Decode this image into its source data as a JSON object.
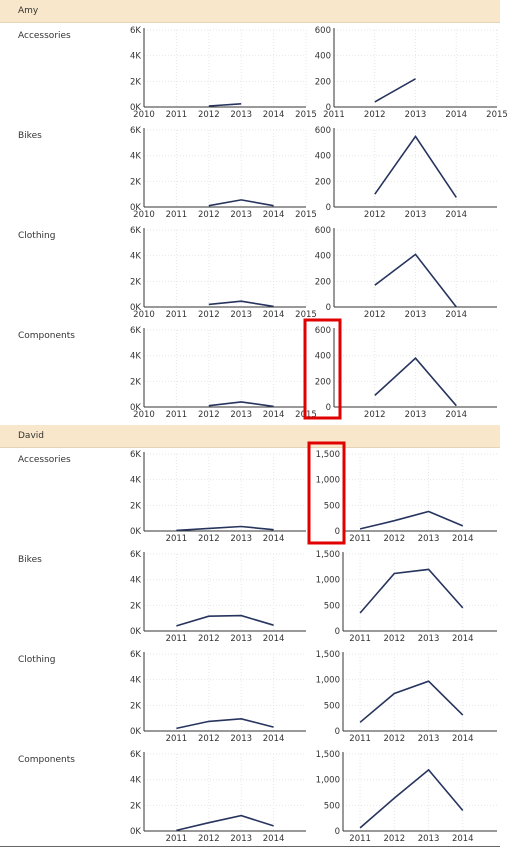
{
  "groups": [
    {
      "name": "Amy",
      "categories": [
        "Accessories",
        "Bikes",
        "Clothing",
        "Components"
      ]
    },
    {
      "name": "David",
      "categories": [
        "Accessories",
        "Bikes",
        "Clothing",
        "Components"
      ]
    }
  ],
  "colors": {
    "series": "#27345e",
    "header_bg": "#f8e7cb",
    "highlight": "#e00000"
  },
  "chart_data": [
    {
      "id": "amy-accessories-left",
      "type": "line",
      "x": [
        2010,
        2011,
        2012,
        2013,
        2014,
        2015
      ],
      "y": [
        null,
        null,
        80,
        250,
        null,
        null
      ],
      "xlim": [
        2010,
        2015
      ],
      "ylim": [
        0,
        6000
      ],
      "yticks": [
        0,
        2000,
        4000,
        6000
      ],
      "ytick_labels": [
        "0K",
        "2K",
        "4K",
        "6K"
      ],
      "xtick_labels": [
        "2010",
        "2011",
        "2012",
        "2013",
        "2014",
        "2015"
      ]
    },
    {
      "id": "amy-accessories-right",
      "type": "line",
      "x": [
        2011,
        2012,
        2013,
        2014,
        2015
      ],
      "y": [
        null,
        40,
        220,
        null,
        null
      ],
      "xlim": [
        2011,
        2015
      ],
      "ylim": [
        0,
        600
      ],
      "yticks": [
        0,
        200,
        400,
        600
      ],
      "ytick_labels": [
        "0",
        "200",
        "400",
        "600"
      ],
      "xtick_labels": [
        "2011",
        "2012",
        "2013",
        "2014",
        "2015"
      ]
    },
    {
      "id": "amy-bikes-left",
      "type": "line",
      "x": [
        2010,
        2011,
        2012,
        2013,
        2014,
        2015
      ],
      "y": [
        null,
        null,
        100,
        550,
        100,
        null
      ],
      "xlim": [
        2010,
        2015
      ],
      "ylim": [
        0,
        6000
      ],
      "yticks": [
        0,
        2000,
        4000,
        6000
      ],
      "ytick_labels": [
        "0K",
        "2K",
        "4K",
        "6K"
      ],
      "xtick_labels": [
        "2010",
        "2011",
        "2012",
        "2013",
        "2014",
        "2015"
      ]
    },
    {
      "id": "amy-bikes-right",
      "type": "line",
      "x": [
        2012,
        2013,
        2014
      ],
      "y": [
        100,
        550,
        75
      ],
      "xlim": [
        2011,
        2015
      ],
      "ylim": [
        0,
        600
      ],
      "yticks": [
        0,
        200,
        400,
        600
      ],
      "ytick_labels": [
        "0",
        "200",
        "400",
        "600"
      ],
      "xtick_labels": [
        "2012",
        "2013",
        "2014"
      ]
    },
    {
      "id": "amy-clothing-left",
      "type": "line",
      "x": [
        2010,
        2011,
        2012,
        2013,
        2014,
        2015
      ],
      "y": [
        null,
        null,
        200,
        450,
        50,
        null
      ],
      "xlim": [
        2010,
        2015
      ],
      "ylim": [
        0,
        6000
      ],
      "yticks": [
        0,
        2000,
        4000,
        6000
      ],
      "ytick_labels": [
        "0K",
        "2K",
        "4K",
        "6K"
      ],
      "xtick_labels": [
        "2010",
        "2011",
        "2012",
        "2013",
        "2014",
        "2015"
      ]
    },
    {
      "id": "amy-clothing-right",
      "type": "line",
      "x": [
        2012,
        2013,
        2014
      ],
      "y": [
        170,
        410,
        0
      ],
      "xlim": [
        2011,
        2015
      ],
      "ylim": [
        0,
        600
      ],
      "yticks": [
        0,
        200,
        400,
        600
      ],
      "ytick_labels": [
        "0",
        "200",
        "400",
        "600"
      ],
      "xtick_labels": [
        "2012",
        "2013",
        "2014"
      ]
    },
    {
      "id": "amy-components-left",
      "type": "line",
      "x": [
        2010,
        2011,
        2012,
        2013,
        2014,
        2015
      ],
      "y": [
        null,
        null,
        100,
        400,
        50,
        null
      ],
      "xlim": [
        2010,
        2015
      ],
      "ylim": [
        0,
        6000
      ],
      "yticks": [
        0,
        2000,
        4000,
        6000
      ],
      "ytick_labels": [
        "0K",
        "2K",
        "4K",
        "6K"
      ],
      "xtick_labels": [
        "2010",
        "2011",
        "2012",
        "2013",
        "2014",
        "2015"
      ]
    },
    {
      "id": "amy-components-right",
      "type": "line",
      "x": [
        2012,
        2013,
        2014
      ],
      "y": [
        90,
        380,
        10
      ],
      "xlim": [
        2011,
        2015
      ],
      "ylim": [
        0,
        600
      ],
      "yticks": [
        0,
        200,
        400,
        600
      ],
      "ytick_labels": [
        "0",
        "200",
        "400",
        "600"
      ],
      "xtick_labels": [
        "2012",
        "2013",
        "2014"
      ]
    },
    {
      "id": "david-accessories-left",
      "type": "line",
      "x": [
        2011,
        2012,
        2013,
        2014
      ],
      "y": [
        50,
        200,
        350,
        100
      ],
      "xlim": [
        2010,
        2015
      ],
      "ylim": [
        0,
        6000
      ],
      "yticks": [
        0,
        2000,
        4000,
        6000
      ],
      "ytick_labels": [
        "0K",
        "2K",
        "4K",
        "6K"
      ],
      "xtick_labels": [
        "2011",
        "2012",
        "2013",
        "2014"
      ]
    },
    {
      "id": "david-accessories-right",
      "type": "line",
      "x": [
        2011,
        2012,
        2013,
        2014
      ],
      "y": [
        40,
        200,
        380,
        100
      ],
      "xlim": [
        2010.5,
        2015
      ],
      "ylim": [
        0,
        1500
      ],
      "yticks": [
        0,
        500,
        1000,
        1500
      ],
      "ytick_labels": [
        "0",
        "500",
        "1,000",
        "1,500"
      ],
      "xtick_labels": [
        "2011",
        "2012",
        "2013",
        "2014"
      ]
    },
    {
      "id": "david-bikes-left",
      "type": "line",
      "x": [
        2011,
        2012,
        2013,
        2014
      ],
      "y": [
        400,
        1150,
        1200,
        450
      ],
      "xlim": [
        2010,
        2015
      ],
      "ylim": [
        0,
        6000
      ],
      "yticks": [
        0,
        2000,
        4000,
        6000
      ],
      "ytick_labels": [
        "0K",
        "2K",
        "4K",
        "6K"
      ],
      "xtick_labels": [
        "2011",
        "2012",
        "2013",
        "2014"
      ]
    },
    {
      "id": "david-bikes-right",
      "type": "line",
      "x": [
        2011,
        2012,
        2013,
        2014
      ],
      "y": [
        350,
        1120,
        1200,
        450
      ],
      "xlim": [
        2010.5,
        2015
      ],
      "ylim": [
        0,
        1500
      ],
      "yticks": [
        0,
        500,
        1000,
        1500
      ],
      "ytick_labels": [
        "0",
        "500",
        "1,000",
        "1,500"
      ],
      "xtick_labels": [
        "2011",
        "2012",
        "2013",
        "2014"
      ]
    },
    {
      "id": "david-clothing-left",
      "type": "line",
      "x": [
        2011,
        2012,
        2013,
        2014
      ],
      "y": [
        200,
        750,
        950,
        300
      ],
      "xlim": [
        2010,
        2015
      ],
      "ylim": [
        0,
        6000
      ],
      "yticks": [
        0,
        2000,
        4000,
        6000
      ],
      "ytick_labels": [
        "0K",
        "2K",
        "4K",
        "6K"
      ],
      "xtick_labels": [
        "2011",
        "2012",
        "2013",
        "2014"
      ]
    },
    {
      "id": "david-clothing-right",
      "type": "line",
      "x": [
        2011,
        2012,
        2013,
        2014
      ],
      "y": [
        170,
        730,
        970,
        310
      ],
      "xlim": [
        2010.5,
        2015
      ],
      "ylim": [
        0,
        1500
      ],
      "yticks": [
        0,
        500,
        1000,
        1500
      ],
      "ytick_labels": [
        "0",
        "500",
        "1,000",
        "1,500"
      ],
      "xtick_labels": [
        "2011",
        "2012",
        "2013",
        "2014"
      ]
    },
    {
      "id": "david-components-left",
      "type": "line",
      "x": [
        2011,
        2012,
        2013,
        2014
      ],
      "y": [
        50,
        650,
        1200,
        400
      ],
      "xlim": [
        2010,
        2015
      ],
      "ylim": [
        0,
        6000
      ],
      "yticks": [
        0,
        2000,
        4000,
        6000
      ],
      "ytick_labels": [
        "0K",
        "2K",
        "4K",
        "6K"
      ],
      "xtick_labels": [
        "2011",
        "2012",
        "2013",
        "2014"
      ]
    },
    {
      "id": "david-components-right",
      "type": "line",
      "x": [
        2011,
        2012,
        2013,
        2014
      ],
      "y": [
        60,
        640,
        1190,
        400
      ],
      "xlim": [
        2010.5,
        2015
      ],
      "ylim": [
        0,
        1500
      ],
      "yticks": [
        0,
        500,
        1000,
        1500
      ],
      "ytick_labels": [
        "0",
        "500",
        "1,000",
        "1,500"
      ],
      "xtick_labels": [
        "2011",
        "2012",
        "2013",
        "2014"
      ]
    }
  ]
}
